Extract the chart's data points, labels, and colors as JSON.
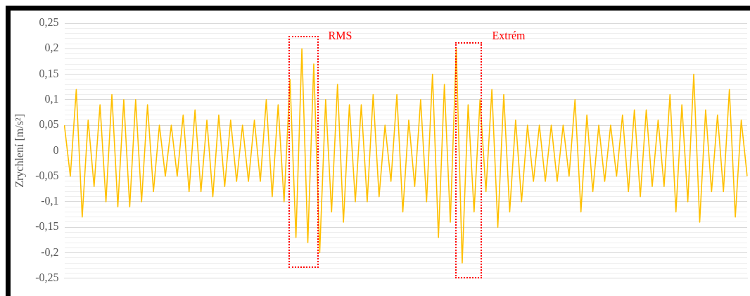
{
  "chart_data": {
    "type": "line",
    "ylabel": "Zrychlení [m/s²]",
    "annotations": [
      "RMS",
      "Extrém"
    ],
    "categories": [
      null,
      null,
      null,
      null,
      null,
      null,
      null,
      null,
      null,
      null,
      null,
      null,
      null,
      null,
      null,
      null,
      null,
      null,
      null,
      null,
      null,
      null,
      null,
      null,
      null,
      null,
      null,
      null,
      null,
      null,
      null,
      null,
      null,
      null,
      null,
      null,
      null,
      null,
      null,
      null,
      null,
      null,
      null,
      null,
      null,
      null,
      null,
      null,
      null,
      null,
      null,
      null,
      null,
      null,
      null,
      null,
      null,
      null,
      null,
      null,
      null,
      null,
      null,
      null,
      null,
      null,
      null,
      null,
      null,
      null,
      null,
      null,
      null,
      null,
      null,
      null,
      null,
      null,
      null,
      null,
      null,
      null,
      null,
      null,
      null,
      null,
      null,
      null,
      null,
      null,
      null,
      null,
      null,
      null,
      null,
      null,
      null,
      null,
      null,
      null,
      null,
      null,
      null,
      null,
      null,
      null,
      null,
      null,
      null,
      null,
      null,
      null,
      null,
      null,
      null,
      null
    ],
    "series": [
      {
        "color": "#ffc000",
        "values": [
          0.05,
          -0.05,
          0.12,
          -0.13,
          0.06,
          -0.07,
          0.09,
          -0.1,
          0.11,
          -0.11,
          0.1,
          -0.11,
          0.1,
          -0.1,
          0.09,
          -0.08,
          0.05,
          -0.05,
          0.05,
          -0.05,
          0.07,
          -0.08,
          0.08,
          -0.08,
          0.06,
          -0.09,
          0.07,
          -0.07,
          0.06,
          -0.06,
          0.05,
          -0.06,
          0.06,
          -0.06,
          0.1,
          -0.09,
          0.09,
          -0.1,
          0.14,
          -0.17,
          0.2,
          -0.18,
          0.17,
          -0.2,
          0.1,
          -0.12,
          0.13,
          -0.14,
          0.09,
          -0.1,
          0.09,
          -0.1,
          0.11,
          -0.09,
          0.05,
          -0.06,
          0.11,
          -0.12,
          0.06,
          -0.07,
          0.1,
          -0.1,
          0.15,
          -0.17,
          0.13,
          -0.14,
          0.2,
          -0.22,
          0.09,
          -0.12,
          0.1,
          -0.08,
          0.12,
          -0.15,
          0.11,
          -0.12,
          0.06,
          -0.1,
          0.05,
          -0.06,
          0.05,
          -0.06,
          0.05,
          -0.06,
          0.05,
          -0.05,
          0.1,
          -0.12,
          0.07,
          -0.08,
          0.05,
          -0.06,
          0.05,
          -0.05,
          0.07,
          -0.08,
          0.08,
          -0.09,
          0.08,
          -0.07,
          0.06,
          -0.07,
          0.11,
          -0.12,
          0.09,
          -0.1,
          0.15,
          -0.14,
          0.08,
          -0.08,
          0.07,
          -0.08,
          0.12,
          -0.13,
          0.06,
          -0.05
        ]
      }
    ],
    "ylim": [
      -0.25,
      0.25
    ],
    "yticks": [
      {
        "value": -0.25,
        "label": "-0,25"
      },
      {
        "value": -0.24,
        "label": null
      },
      {
        "value": -0.23,
        "label": null
      },
      {
        "value": -0.22,
        "label": null
      },
      {
        "value": -0.21,
        "label": null
      },
      {
        "value": -0.2,
        "label": "-0,2"
      },
      {
        "value": -0.19,
        "label": null
      },
      {
        "value": -0.18,
        "label": null
      },
      {
        "value": -0.17,
        "label": null
      },
      {
        "value": -0.16,
        "label": null
      },
      {
        "value": -0.15,
        "label": "-0,15"
      },
      {
        "value": -0.14,
        "label": null
      },
      {
        "value": -0.13,
        "label": null
      },
      {
        "value": -0.12,
        "label": null
      },
      {
        "value": -0.11,
        "label": null
      },
      {
        "value": -0.1,
        "label": "-0,1"
      },
      {
        "value": -0.09,
        "label": null
      },
      {
        "value": -0.08,
        "label": null
      },
      {
        "value": -0.07,
        "label": null
      },
      {
        "value": -0.06,
        "label": null
      },
      {
        "value": -0.05,
        "label": "-0,05"
      },
      {
        "value": -0.04,
        "label": null
      },
      {
        "value": -0.03,
        "label": null
      },
      {
        "value": -0.02,
        "label": null
      },
      {
        "value": -0.01,
        "label": null
      },
      0,
      {
        "value": 0.01,
        "label": null
      },
      {
        "value": 0.02,
        "label": null
      },
      {
        "value": 0.03,
        "label": null
      },
      {
        "value": 0.04,
        "label": null
      },
      {
        "value": 0.05,
        "label": "0,05"
      },
      {
        "value": 0.06,
        "label": null
      },
      {
        "value": 0.07,
        "label": null
      },
      {
        "value": 0.08,
        "label": null
      },
      {
        "value": 0.09,
        "label": null
      },
      {
        "value": 0.1,
        "label": "0,1"
      },
      {
        "value": 0.11,
        "label": null
      },
      {
        "value": 0.12,
        "label": null
      },
      {
        "value": 0.13,
        "label": null
      },
      {
        "value": 0.14,
        "label": null
      },
      {
        "value": 0.15,
        "label": "0,15"
      },
      {
        "value": 0.16,
        "label": null
      },
      {
        "value": 0.17,
        "label": null
      },
      {
        "value": 0.18,
        "label": null
      },
      {
        "value": 0.19,
        "label": null
      },
      {
        "value": 0.2,
        "label": "0,2"
      },
      {
        "value": 0.21,
        "label": null
      },
      {
        "value": 0.22,
        "label": null
      },
      {
        "value": 0.23,
        "label": null
      },
      {
        "value": 0.24,
        "label": null
      },
      {
        "value": 0.25,
        "label": "0,25"
      }
    ],
    "grid": "y",
    "legend": false,
    "marker": "none",
    "line_style": "solid"
  }
}
